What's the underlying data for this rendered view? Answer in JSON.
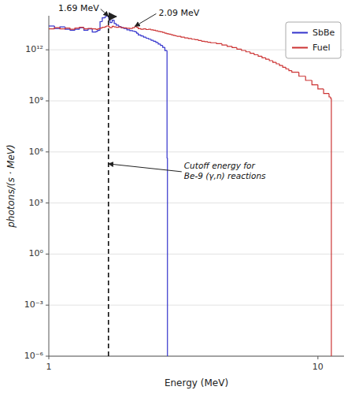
{
  "chart_data": {
    "type": "step",
    "xlabel": "Energy (MeV)",
    "ylabel": "photons/(s · MeV)",
    "log": true,
    "grid": true,
    "legend": "upper right",
    "xlim": [
      1.0,
      12.5
    ],
    "ylim": [
      1e-06,
      100000000000000.0
    ],
    "xticks": [
      1,
      10
    ],
    "yticks": [
      {
        "value": 1e-06,
        "label": "10⁻⁶"
      },
      {
        "value": 0.001,
        "label": "10⁻³"
      },
      {
        "value": 1,
        "label": "10⁰"
      },
      {
        "value": 1000.0,
        "label": "10³"
      },
      {
        "value": 1000000.0,
        "label": "10⁶"
      },
      {
        "value": 1000000000.0,
        "label": "10⁹"
      },
      {
        "value": 1000000000000.0,
        "label": "10¹²"
      }
    ],
    "series": [
      {
        "name": "SbBe",
        "color": "#3333cc",
        "x": [
          1.0,
          1.05,
          1.1,
          1.15,
          1.2,
          1.25,
          1.3,
          1.35,
          1.4,
          1.45,
          1.5,
          1.52,
          1.55,
          1.58,
          1.62,
          1.64,
          1.666,
          1.67,
          1.69,
          1.72,
          1.75,
          1.78,
          1.82,
          1.86,
          1.9,
          1.95,
          2.0,
          2.05,
          2.09,
          2.12,
          2.15,
          2.2,
          2.25,
          2.3,
          2.35,
          2.4,
          2.45,
          2.5,
          2.55,
          2.6,
          2.65,
          2.7,
          2.75,
          2.76
        ],
        "values": [
          25000000000000.0,
          18000000000000.0,
          22000000000000.0,
          16000000000000.0,
          14000000000000.0,
          16000000000000.0,
          20000000000000.0,
          14000000000000.0,
          17000000000000.0,
          11000000000000.0,
          12000000000000.0,
          14000000000000.0,
          45000000000000.0,
          75000000000000.0,
          90000000000000.0,
          98000000000000.0,
          98000000000000.0,
          65000000000000.0,
          40000000000000.0,
          55000000000000.0,
          35000000000000.0,
          28000000000000.0,
          23000000000000.0,
          20000000000000.0,
          18000000000000.0,
          15000000000000.0,
          13500000000000.0,
          12500000000000.0,
          11500000000000.0,
          9500000000000.0,
          7500000000000.0,
          6500000000000.0,
          5500000000000.0,
          4800000000000.0,
          4200000000000.0,
          3600000000000.0,
          3200000000000.0,
          2700000000000.0,
          2200000000000.0,
          1800000000000.0,
          1400000000000.0,
          900000000000.0,
          450000.0,
          450000.0
        ]
      },
      {
        "name": "Fuel",
        "color": "#cc3333",
        "x": [
          1.0,
          1.05,
          1.1,
          1.15,
          1.2,
          1.25,
          1.3,
          1.35,
          1.4,
          1.45,
          1.5,
          1.52,
          1.55,
          1.58,
          1.62,
          1.64,
          1.666,
          1.67,
          1.69,
          1.72,
          1.75,
          1.78,
          1.82,
          1.86,
          1.9,
          1.95,
          2.0,
          2.05,
          2.09,
          2.12,
          2.15,
          2.2,
          2.25,
          2.3,
          2.35,
          2.4,
          2.45,
          2.5,
          2.55,
          2.6,
          2.65,
          2.7,
          2.75,
          2.8,
          2.85,
          2.9,
          2.95,
          3.0,
          3.1,
          3.2,
          3.3,
          3.4,
          3.5,
          3.6,
          3.7,
          3.8,
          3.9,
          4.0,
          4.2,
          4.4,
          4.6,
          4.8,
          5.0,
          5.2,
          5.4,
          5.6,
          5.8,
          6.0,
          6.2,
          6.4,
          6.6,
          6.8,
          7.0,
          7.2,
          7.4,
          7.6,
          7.8,
          8.0,
          8.5,
          9.0,
          9.5,
          10.0,
          10.5,
          11.0,
          11.15,
          11.22
        ],
        "values": [
          17000000000000.0,
          20000000000000.0,
          17000000000000.0,
          19000000000000.0,
          16000000000000.0,
          19000000000000.0,
          21000000000000.0,
          17000000000000.0,
          18000000000000.0,
          17000000000000.0,
          15500000000000.0,
          17000000000000.0,
          19000000000000.0,
          21000000000000.0,
          23000000000000.0,
          25000000000000.0,
          26000000000000.0,
          22000000000000.0,
          20000000000000.0,
          24000000000000.0,
          22000000000000.0,
          21000000000000.0,
          22000000000000.0,
          20000000000000.0,
          19500000000000.0,
          18500000000000.0,
          18000000000000.0,
          20000000000000.0,
          24000000000000.0,
          21000000000000.0,
          17500000000000.0,
          16000000000000.0,
          17000000000000.0,
          15500000000000.0,
          16000000000000.0,
          15000000000000.0,
          14000000000000.0,
          13000000000000.0,
          12000000000000.0,
          11500000000000.0,
          10500000000000.0,
          9500000000000.0,
          8800000000000.0,
          8200000000000.0,
          7700000000000.0,
          7100000000000.0,
          6600000000000.0,
          6200000000000.0,
          5500000000000.0,
          5000000000000.0,
          4600000000000.0,
          4200000000000.0,
          3900000000000.0,
          3500000000000.0,
          3200000000000.0,
          3000000000000.0,
          2800000000000.0,
          2600000000000.0,
          2300000000000.0,
          1900000000000.0,
          1600000000000.0,
          1350000000000.0,
          1100000000000.0,
          920000000000.0,
          760000000000.0,
          620000000000.0,
          510000000000.0,
          420000000000.0,
          340000000000.0,
          280000000000.0,
          230000000000.0,
          185000000000.0,
          150000000000.0,
          120000000000.0,
          95000000000.0,
          75000000000.0,
          60000000000.0,
          48000000000.0,
          28000000000.0,
          16000000000.0,
          8800000000.0,
          5000000000.0,
          2700000000.0,
          1700000000.0,
          1400000000.0,
          1400000000.0
        ]
      }
    ],
    "reference_line": {
      "x": 1.666,
      "line_style": "dashed"
    },
    "annotations": [
      {
        "text": "1.69 MeV",
        "x": 1.666,
        "y": 95000000000000.0
      },
      {
        "text": "2.09 MeV",
        "x": 2.09,
        "y": 24000000000000.0
      },
      {
        "text": "Cutoff energy for\nBe-9 (γ,n) reactions",
        "x": 1.666,
        "y": 200000.0
      }
    ]
  }
}
